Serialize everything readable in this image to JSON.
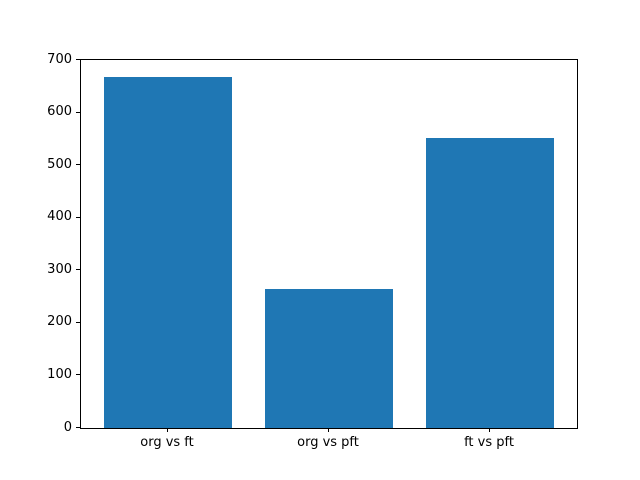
{
  "chart_data": {
    "type": "bar",
    "categories": [
      "org vs ft",
      "org vs pft",
      "ft vs pft"
    ],
    "values": [
      668,
      265,
      552
    ],
    "title": "",
    "xlabel": "",
    "ylabel": "",
    "ylim": [
      0,
      700
    ],
    "ytick_step": 100,
    "yticks": [
      0,
      100,
      200,
      300,
      400,
      500,
      600,
      700
    ],
    "bar_color": "#1f77b4",
    "axis_color": "#000000",
    "background_color": "#ffffff",
    "grid": "off",
    "legend": "none",
    "bar_width_fraction": 0.8
  }
}
